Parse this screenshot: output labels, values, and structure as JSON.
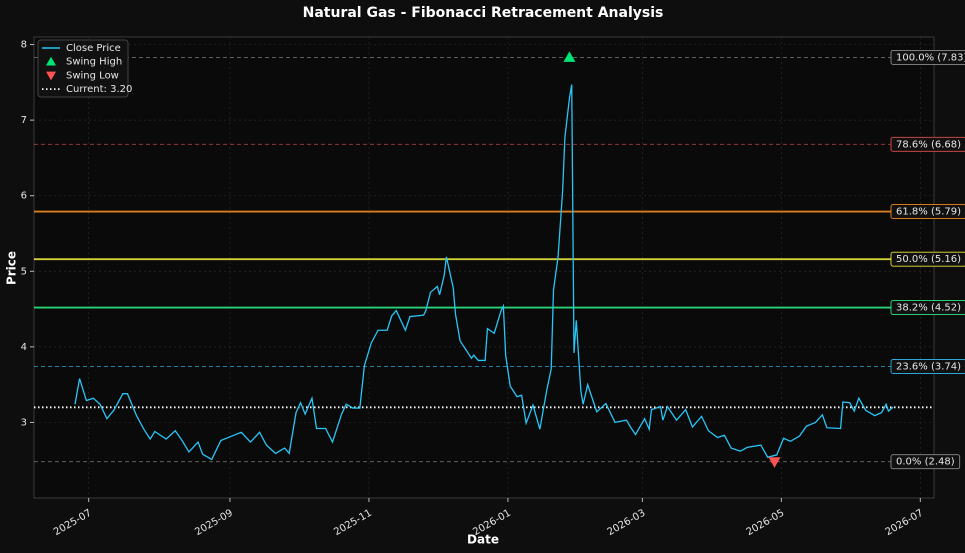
{
  "chart_data": {
    "type": "line",
    "title": "Natural Gas - Fibonacci Retracement Analysis",
    "xlabel": "Date",
    "ylabel": "Price",
    "x": [
      "2025-06-25",
      "2025-06-27",
      "2025-06-30",
      "2025-07-03",
      "2025-07-06",
      "2025-07-09",
      "2025-07-12",
      "2025-07-16",
      "2025-07-18",
      "2025-07-22",
      "2025-07-25",
      "2025-07-28",
      "2025-07-30",
      "2025-08-04",
      "2025-08-08",
      "2025-08-11",
      "2025-08-14",
      "2025-08-18",
      "2025-08-20",
      "2025-08-24",
      "2025-08-28",
      "2025-09-01",
      "2025-09-06",
      "2025-09-10",
      "2025-09-14",
      "2025-09-17",
      "2025-09-21",
      "2025-09-25",
      "2025-09-27",
      "2025-09-30",
      "2025-10-02",
      "2025-10-04",
      "2025-10-07",
      "2025-10-09",
      "2025-10-13",
      "2025-10-16",
      "2025-10-20",
      "2025-10-22",
      "2025-10-25",
      "2025-10-28",
      "2025-10-30",
      "2025-11-02",
      "2025-11-05",
      "2025-11-09",
      "2025-11-11",
      "2025-11-13",
      "2025-11-17",
      "2025-11-19",
      "2025-11-25",
      "2025-11-26",
      "2025-11-28",
      "2025-12-01",
      "2025-12-02",
      "2025-12-04",
      "2025-12-05",
      "2025-12-08",
      "2025-12-09",
      "2025-12-11",
      "2025-12-16",
      "2025-12-17",
      "2025-12-19",
      "2025-12-22",
      "2025-12-23",
      "2025-12-26",
      "2025-12-29",
      "2025-12-30",
      "2025-12-31",
      "2026-01-02",
      "2026-01-05",
      "2026-01-07",
      "2026-01-09",
      "2026-01-12",
      "2026-01-15",
      "2026-01-18",
      "2026-01-20",
      "2026-01-21",
      "2026-01-23",
      "2026-01-25",
      "2026-01-26",
      "2026-01-28",
      "2026-01-29",
      "2026-01-30",
      "2026-01-31",
      "2026-02-02",
      "2026-02-03",
      "2026-02-05",
      "2026-02-09",
      "2026-02-13",
      "2026-02-17",
      "2026-02-22",
      "2026-02-24",
      "2026-02-26",
      "2026-03-02",
      "2026-03-04",
      "2026-03-05",
      "2026-03-09",
      "2026-03-10",
      "2026-03-12",
      "2026-03-16",
      "2026-03-20",
      "2026-03-23",
      "2026-03-27",
      "2026-03-30",
      "2026-04-03",
      "2026-04-06",
      "2026-04-09",
      "2026-04-13",
      "2026-04-16",
      "2026-04-22",
      "2026-04-25",
      "2026-04-29",
      "2026-05-02",
      "2026-05-05",
      "2026-05-09",
      "2026-05-12",
      "2026-05-16",
      "2026-05-19",
      "2026-05-21",
      "2026-05-27",
      "2026-05-28",
      "2026-05-31",
      "2026-06-02",
      "2026-06-04",
      "2026-06-07",
      "2026-06-11",
      "2026-06-14",
      "2026-06-16",
      "2026-06-17",
      "2026-06-19"
    ],
    "series": [
      {
        "name": "Close Price",
        "color": "#29c5f6",
        "values": [
          3.24,
          3.58,
          3.29,
          3.32,
          3.24,
          3.05,
          3.16,
          3.38,
          3.38,
          3.09,
          2.92,
          2.78,
          2.88,
          2.78,
          2.89,
          2.76,
          2.61,
          2.74,
          2.58,
          2.51,
          2.76,
          2.81,
          2.87,
          2.74,
          2.87,
          2.7,
          2.59,
          2.66,
          2.59,
          3.13,
          3.26,
          3.11,
          3.32,
          2.92,
          2.92,
          2.74,
          3.11,
          3.24,
          3.19,
          3.19,
          3.75,
          4.05,
          4.22,
          4.22,
          4.41,
          4.48,
          4.22,
          4.4,
          4.42,
          4.48,
          4.72,
          4.8,
          4.69,
          4.94,
          5.19,
          4.78,
          4.43,
          4.08,
          3.85,
          3.89,
          3.82,
          3.82,
          4.24,
          4.18,
          4.48,
          4.54,
          3.89,
          3.48,
          3.34,
          3.36,
          2.99,
          3.23,
          2.91,
          3.42,
          3.71,
          4.75,
          5.19,
          6.06,
          6.77,
          7.29,
          7.47,
          3.92,
          4.35,
          3.42,
          3.24,
          3.5,
          3.14,
          3.25,
          3.0,
          3.03,
          2.93,
          2.84,
          3.05,
          2.91,
          3.17,
          3.21,
          3.03,
          3.21,
          3.03,
          3.17,
          2.94,
          3.08,
          2.89,
          2.8,
          2.83,
          2.66,
          2.62,
          2.67,
          2.7,
          2.54,
          2.57,
          2.79,
          2.75,
          2.82,
          2.95,
          3.0,
          3.1,
          2.93,
          2.92,
          3.27,
          3.26,
          3.15,
          3.32,
          3.16,
          3.09,
          3.13,
          3.24,
          3.15,
          3.2
        ]
      }
    ],
    "swing_high": {
      "name": "Swing High",
      "x": "2026-01-28",
      "value": 7.83,
      "color": "#00e676"
    },
    "swing_low": {
      "name": "Swing Low",
      "x": "2026-04-28",
      "value": 2.48,
      "color": "#ff5252"
    },
    "current": {
      "name": "Current: 3.20",
      "value": 3.2,
      "color": "#ffffff"
    },
    "levels": [
      {
        "label": "100.0% (7.83)",
        "value": 7.83,
        "color": "#8c8c8c",
        "style": "dashed"
      },
      {
        "label": "78.6% (6.68)",
        "value": 6.68,
        "color": "#e05050",
        "style": "dashed"
      },
      {
        "label": "61.8% (5.79)",
        "value": 5.79,
        "color": "#f08a24",
        "style": "solid"
      },
      {
        "label": "50.0% (5.16)",
        "value": 5.16,
        "color": "#e6e63c",
        "style": "solid"
      },
      {
        "label": "38.2% (4.52)",
        "value": 4.52,
        "color": "#2ee682",
        "style": "solid"
      },
      {
        "label": "23.6% (3.74)",
        "value": 3.74,
        "color": "#2aa8d8",
        "style": "dashed"
      },
      {
        "label": "0.0% (2.48)",
        "value": 2.48,
        "color": "#8c8c8c",
        "style": "dashed"
      }
    ],
    "xlim": [
      "2025-06-07",
      "2026-07-07"
    ],
    "ylim": [
      2.0,
      8.1
    ],
    "xticks": [
      "2025-07",
      "2025-09",
      "2025-11",
      "2026-01",
      "2026-03",
      "2026-05",
      "2026-07"
    ],
    "yticks": [
      3,
      4,
      5,
      6,
      7,
      8
    ],
    "grid": true,
    "legend": "upper left"
  }
}
